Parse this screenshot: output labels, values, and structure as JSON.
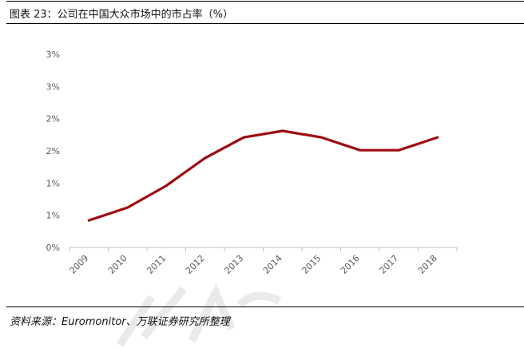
{
  "header": {
    "title": "图表 23：公司在中国大众市场中的市占率（%）"
  },
  "footer": {
    "source": "资料来源：Euromonitor、万联证券研究所整理"
  },
  "colors": {
    "line": "#9e0b0f",
    "axis": "#bfbfbf",
    "tick_text": "#595959"
  },
  "chart_data": {
    "type": "line",
    "title": "",
    "xlabel": "",
    "ylabel": "",
    "categories": [
      "2009",
      "2010",
      "2011",
      "2012",
      "2013",
      "2014",
      "2015",
      "2016",
      "2017",
      "2018"
    ],
    "y_tick_labels": [
      "0%",
      "1%",
      "1%",
      "2%",
      "2%",
      "3%",
      "3%"
    ],
    "ylim": [
      0,
      3.0
    ],
    "grid": false,
    "legend": "none",
    "series": [
      {
        "values": [
          0.42,
          0.62,
          0.96,
          1.39,
          1.71,
          1.81,
          1.71,
          1.51,
          1.51,
          1.71
        ]
      }
    ]
  }
}
